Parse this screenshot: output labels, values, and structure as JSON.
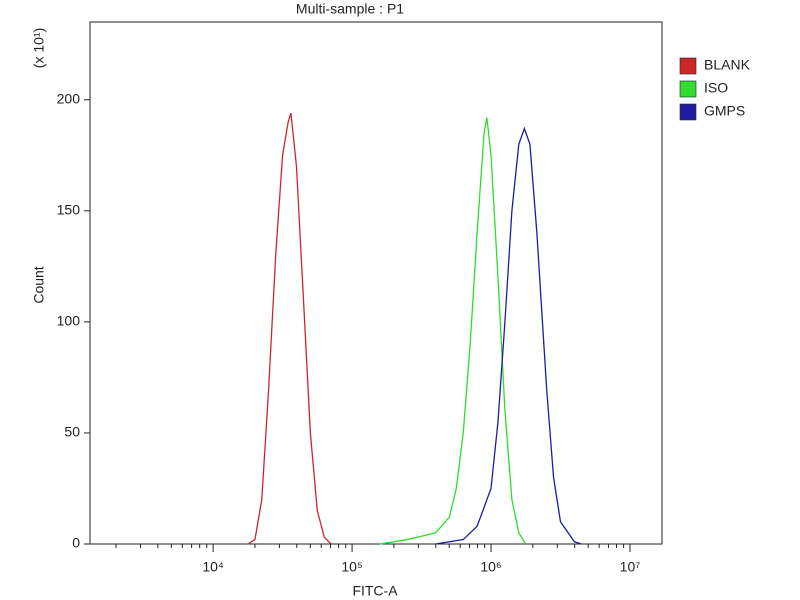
{
  "chart_data": {
    "type": "line",
    "title": "Multi-sample : P1",
    "xlabel": "FITC-A",
    "ylabel": "Count",
    "y_multiplier": "(x 10¹)",
    "xscale": "log",
    "xlim": [
      1300,
      17000000
    ],
    "ylim": [
      0,
      235
    ],
    "xticks": [
      {
        "value": 10000,
        "label": "10⁴"
      },
      {
        "value": 100000,
        "label": "10⁵"
      },
      {
        "value": 1000000,
        "label": "10⁶"
      },
      {
        "value": 10000000,
        "label": "10⁷"
      }
    ],
    "xminorticks": [
      2000,
      3000,
      4000,
      5000,
      6000,
      7000,
      8000,
      9000,
      20000,
      30000,
      40000,
      50000,
      60000,
      70000,
      80000,
      90000,
      200000,
      300000,
      400000,
      500000,
      600000,
      700000,
      800000,
      900000,
      2000000,
      3000000,
      4000000,
      5000000,
      6000000,
      7000000,
      8000000,
      9000000
    ],
    "yticks": [
      0,
      50,
      100,
      150,
      200
    ],
    "legend": "right",
    "series": [
      {
        "name": "BLANK",
        "color": "#c8282a",
        "x": [
          17800,
          20000,
          22400,
          25100,
          28200,
          31600,
          34700,
          36300,
          39800,
          44700,
          50100,
          56200,
          63100,
          70800
        ],
        "values": [
          0,
          2,
          20,
          70,
          130,
          175,
          190,
          194,
          170,
          110,
          50,
          15,
          3,
          0
        ]
      },
      {
        "name": "ISO",
        "color": "#2fdc2f",
        "x": [
          158000,
          251000,
          398000,
          501000,
          562000,
          631000,
          708000,
          794000,
          891000,
          933000,
          1000000,
          1122000,
          1259000,
          1413000,
          1585000,
          1778000
        ],
        "values": [
          0,
          2,
          5,
          12,
          25,
          50,
          90,
          140,
          185,
          192,
          175,
          120,
          60,
          20,
          5,
          0
        ]
      },
      {
        "name": "GMPS",
        "color": "#1c1ca0",
        "x": [
          398000,
          631000,
          794000,
          1000000,
          1122000,
          1259000,
          1413000,
          1585000,
          1738000,
          1905000,
          2138000,
          2512000,
          2818000,
          3162000,
          3981000,
          4467000
        ],
        "values": [
          0,
          2,
          8,
          25,
          55,
          100,
          150,
          180,
          187,
          180,
          140,
          70,
          30,
          10,
          1,
          0
        ]
      }
    ]
  }
}
